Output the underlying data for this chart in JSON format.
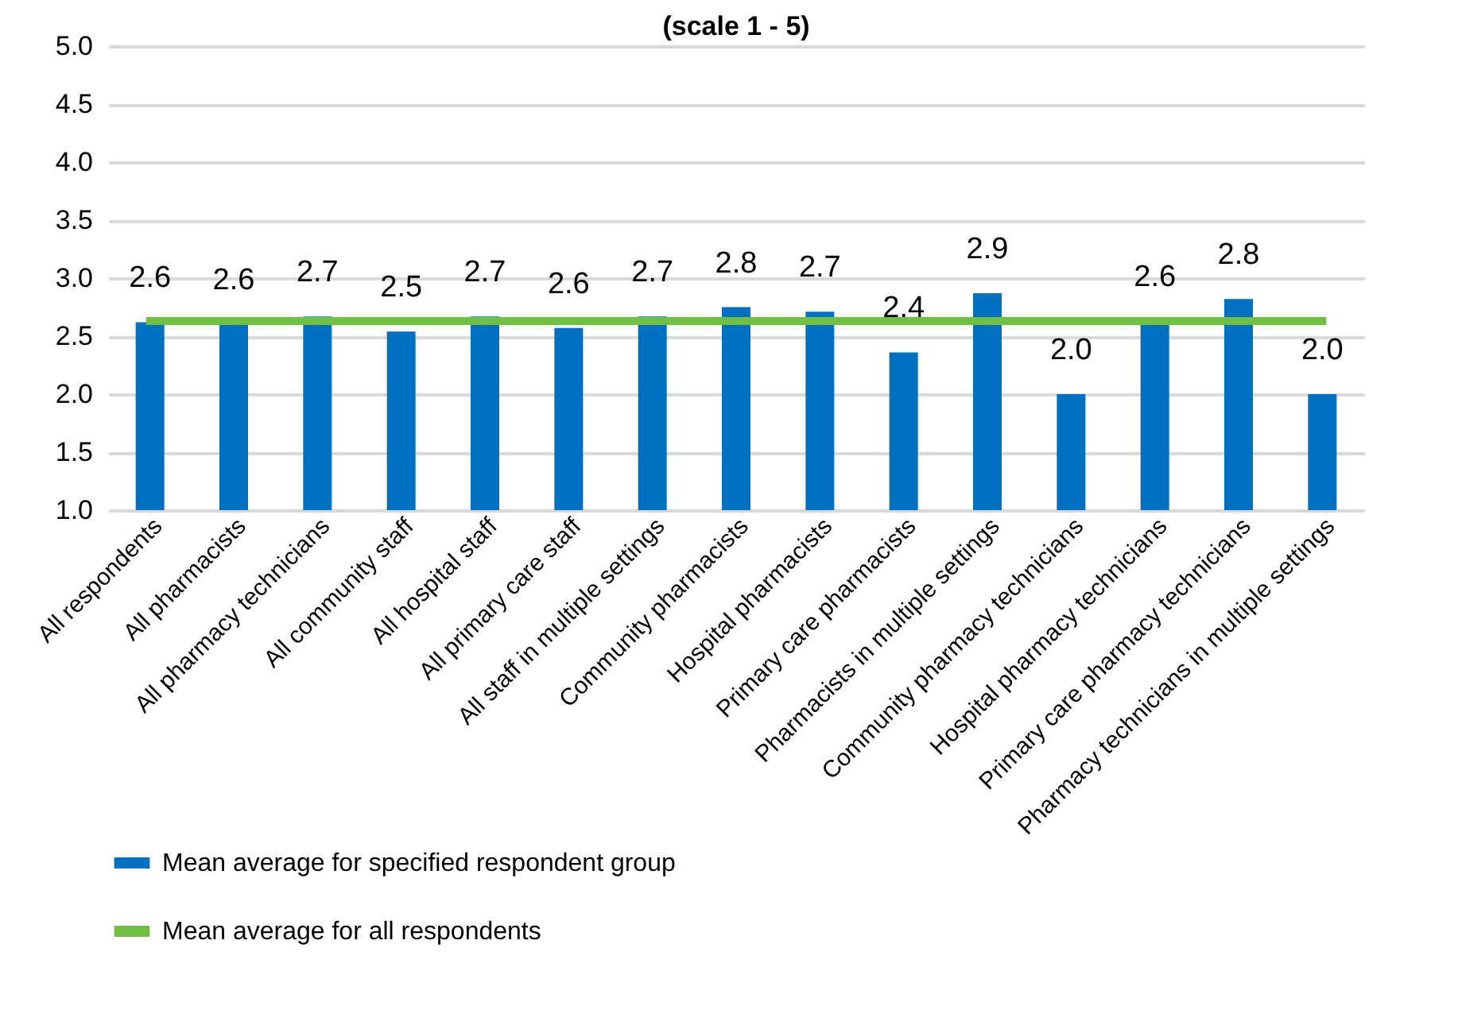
{
  "chart_data": {
    "type": "bar",
    "title": "(scale 1 - 5)",
    "categories": [
      "All respondents",
      "All pharmacists",
      "All pharmacy technicians",
      "All community staff",
      "All hospital staff",
      "All primary care staff",
      "All staff in multiple settings",
      "Community pharmacists",
      "Hospital pharmacists",
      "Primary care pharmacists",
      "Pharmacists in multiple settings",
      "Community pharmacy technicians",
      "Hospital pharmacy technicians",
      "Primary care pharmacy technicians",
      "Pharmacy technicians in multiple settings"
    ],
    "series": [
      {
        "name": "Mean average for specified respondent group",
        "color": "#0070c0",
        "values": [
          2.62,
          2.6,
          2.67,
          2.54,
          2.67,
          2.57,
          2.67,
          2.75,
          2.71,
          2.36,
          2.87,
          2.0,
          2.63,
          2.82,
          2.0
        ],
        "value_labels": [
          "2.6",
          "2.6",
          "2.7",
          "2.5",
          "2.7",
          "2.6",
          "2.7",
          "2.8",
          "2.7",
          "2.4",
          "2.9",
          "2.0",
          "2.6",
          "2.8",
          "2.0"
        ]
      },
      {
        "name": "Mean average for all respondents",
        "type": "line",
        "color": "#70bf44",
        "values": [
          2.63,
          2.63,
          2.63,
          2.63,
          2.63,
          2.63,
          2.63,
          2.63,
          2.63,
          2.63,
          2.63,
          2.63,
          2.63,
          2.63,
          2.63
        ]
      }
    ],
    "ylim": [
      1,
      5
    ],
    "yticks": [
      {
        "value": 1,
        "label": "1.0"
      },
      {
        "value": 1.5,
        "label": "1.5"
      },
      {
        "value": 2,
        "label": "2.0"
      },
      {
        "value": 2.5,
        "label": "2.5"
      },
      {
        "value": 3,
        "label": "3.0"
      },
      {
        "value": 3.5,
        "label": "3.5"
      },
      {
        "value": 4,
        "label": "4.0"
      },
      {
        "value": 4.5,
        "label": "4.5"
      },
      {
        "value": 5,
        "label": "5.0"
      }
    ],
    "grid": "y",
    "legend": "bottom left"
  }
}
